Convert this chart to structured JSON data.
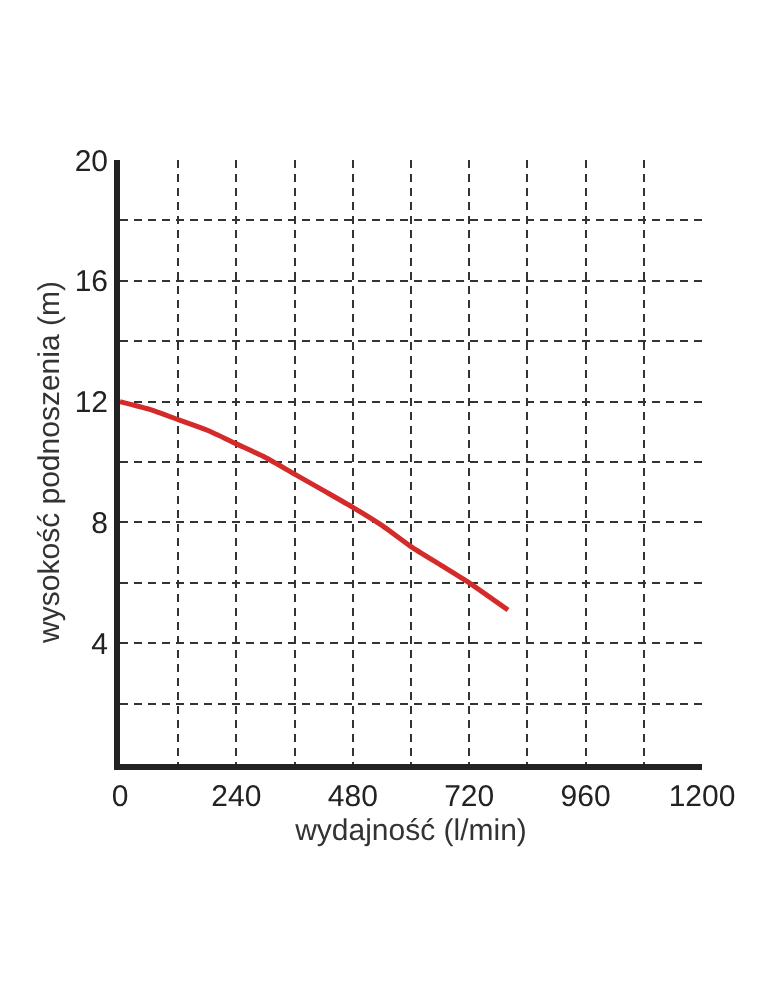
{
  "chart_data": {
    "type": "line",
    "xlabel": "wydajność (l/min)",
    "ylabel": "wysokość podnoszenia (m)",
    "x": [
      0,
      60,
      120,
      180,
      240,
      300,
      360,
      420,
      480,
      540,
      600,
      660,
      720,
      800
    ],
    "series": [
      {
        "color": "#d42a2a",
        "values": [
          12,
          11.75,
          11.4,
          11.05,
          10.6,
          10.15,
          9.6,
          9.05,
          8.5,
          7.9,
          7.2,
          6.6,
          6.0,
          5.1
        ]
      }
    ],
    "xlim": [
      0,
      1200
    ],
    "ylim": [
      0,
      20
    ],
    "xticks": [
      0,
      {
        "value": 120,
        "label": null
      },
      240,
      {
        "value": 360,
        "label": null
      },
      480,
      {
        "value": 600,
        "label": null
      },
      720,
      {
        "value": 840,
        "label": null
      },
      960,
      {
        "value": 1080,
        "label": null
      },
      1200
    ],
    "yticks": [
      {
        "value": 0,
        "label": null
      },
      {
        "value": 2,
        "label": null
      },
      4,
      {
        "value": 6,
        "label": null
      },
      8,
      {
        "value": 10,
        "label": null
      },
      12,
      {
        "value": 14,
        "label": null
      },
      16,
      {
        "value": 18,
        "label": null
      },
      20
    ],
    "grid": true,
    "marker": "none",
    "line_style": "solid"
  }
}
